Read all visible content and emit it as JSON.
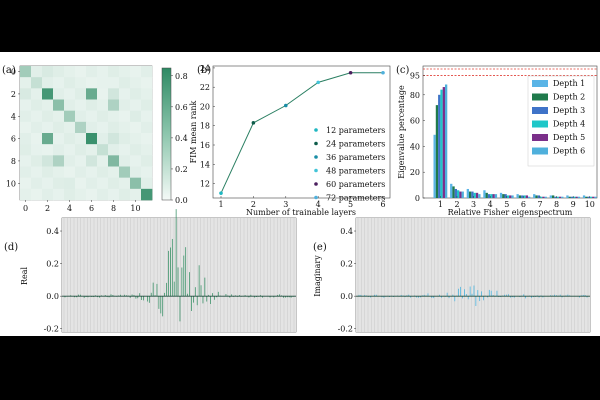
{
  "colors": {
    "heat": "#2e8a64",
    "line": "#2a7f62",
    "spectra": [
      "#5ab4e6",
      "#1f7a4c",
      "#3f73c8",
      "#1fc7c8",
      "#7b2f8a",
      "#4fb0dc"
    ],
    "markers": [
      "#1fb7c2",
      "#0e5c4a",
      "#1a8ea6",
      "#42c4d8",
      "#4b1f5e",
      "#4fb0dc"
    ],
    "ref_line": "#e0413a",
    "real": "#2a8a5c",
    "imag": "#3bb0e0"
  },
  "chart_data": [
    {
      "panel": "(a)",
      "type": "heatmap",
      "size": 12,
      "x_ticks": [
        "0",
        "2",
        "4",
        "6",
        "8",
        "10"
      ],
      "y_ticks": [
        "0",
        "2",
        "4",
        "6",
        "8",
        "10"
      ],
      "colorbar_ticks": [
        "0.8",
        "0.6",
        "0.4",
        "0.2",
        "0.0"
      ],
      "vmin": 0,
      "vmax": 0.85,
      "diagonal": [
        0.35,
        0.2,
        0.75,
        0.45,
        0.35,
        0.3,
        0.8,
        0.2,
        0.5,
        0.35,
        0.45,
        0.75
      ],
      "off_diagonal": [
        [
          0,
          2,
          0.12
        ],
        [
          2,
          0,
          0.12
        ],
        [
          2,
          6,
          0.6
        ],
        [
          6,
          2,
          0.6
        ],
        [
          2,
          8,
          0.15
        ],
        [
          8,
          2,
          0.15
        ],
        [
          3,
          8,
          0.3
        ],
        [
          8,
          3,
          0.3
        ],
        [
          6,
          8,
          0.15
        ],
        [
          8,
          6,
          0.15
        ],
        [
          4,
          10,
          0.1
        ],
        [
          10,
          4,
          0.1
        ],
        [
          0,
          6,
          0.08
        ],
        [
          6,
          0,
          0.08
        ],
        [
          1,
          7,
          0.06
        ],
        [
          7,
          1,
          0.06
        ]
      ],
      "background": 0.05
    },
    {
      "panel": "(b)",
      "type": "line",
      "x": [
        1,
        2,
        3,
        4,
        5,
        6
      ],
      "values": [
        11,
        18.3,
        20.1,
        22.5,
        23.5,
        23.5
      ],
      "xlabel": "Number of trainable layers",
      "ylabel": "FIM mean rank",
      "ylim": [
        10.5,
        24.2
      ],
      "y_ticks": [
        12,
        14,
        16,
        18,
        20,
        22,
        24
      ],
      "legend": [
        "12 parameters",
        "24 parameters",
        "36 parameters",
        "48 parameters",
        "60 parameters",
        "72 parameters"
      ]
    },
    {
      "panel": "(c)",
      "type": "bar",
      "categories": [
        "1",
        "2",
        "3",
        "4",
        "5",
        "6",
        "7",
        "8",
        "9",
        "10"
      ],
      "xlabel": "Relative Fisher eigenspectrum",
      "ylabel": "Eigenvalue percentage",
      "ylim": [
        0,
        100
      ],
      "y_ticks": [
        0,
        20,
        40,
        60,
        80,
        95
      ],
      "reference_lines": [
        95,
        100
      ],
      "series": [
        {
          "name": "Depth 1",
          "values": [
            49,
            11,
            7,
            6,
            4,
            3,
            3,
            2,
            2,
            2
          ]
        },
        {
          "name": "Depth 2",
          "values": [
            72,
            9,
            5,
            4,
            3,
            2,
            2,
            2,
            1,
            1
          ]
        },
        {
          "name": "Depth 3",
          "values": [
            80,
            7,
            5,
            3,
            3,
            2,
            2,
            1,
            1,
            1
          ]
        },
        {
          "name": "Depth 4",
          "values": [
            84,
            6,
            4,
            3,
            2,
            2,
            1,
            1,
            1,
            1
          ]
        },
        {
          "name": "Depth 5",
          "values": [
            86,
            5,
            4,
            3,
            2,
            2,
            1,
            1,
            1,
            1
          ]
        },
        {
          "name": "Depth 6",
          "values": [
            88,
            5,
            3,
            3,
            2,
            1,
            1,
            1,
            1,
            1
          ]
        }
      ]
    },
    {
      "panel": "(d)",
      "type": "bar",
      "ylabel": "Real",
      "ylim": [
        -0.22,
        0.48
      ],
      "y_ticks": [
        "0.4",
        "0.2",
        "0.0",
        "-0.2"
      ],
      "n_bins": 120,
      "seed": 7,
      "peak": 0.46,
      "peak_center": 0.5,
      "peak_width": 0.11
    },
    {
      "panel": "(e)",
      "type": "bar",
      "ylabel": "Imaginary",
      "ylim": [
        -0.22,
        0.48
      ],
      "y_ticks": [
        "0.4",
        "0.2",
        "0.0",
        "-0.2"
      ],
      "n_bins": 120,
      "seed": 13,
      "peak": 0.08,
      "peak_center": 0.5,
      "peak_width": 0.13
    }
  ]
}
